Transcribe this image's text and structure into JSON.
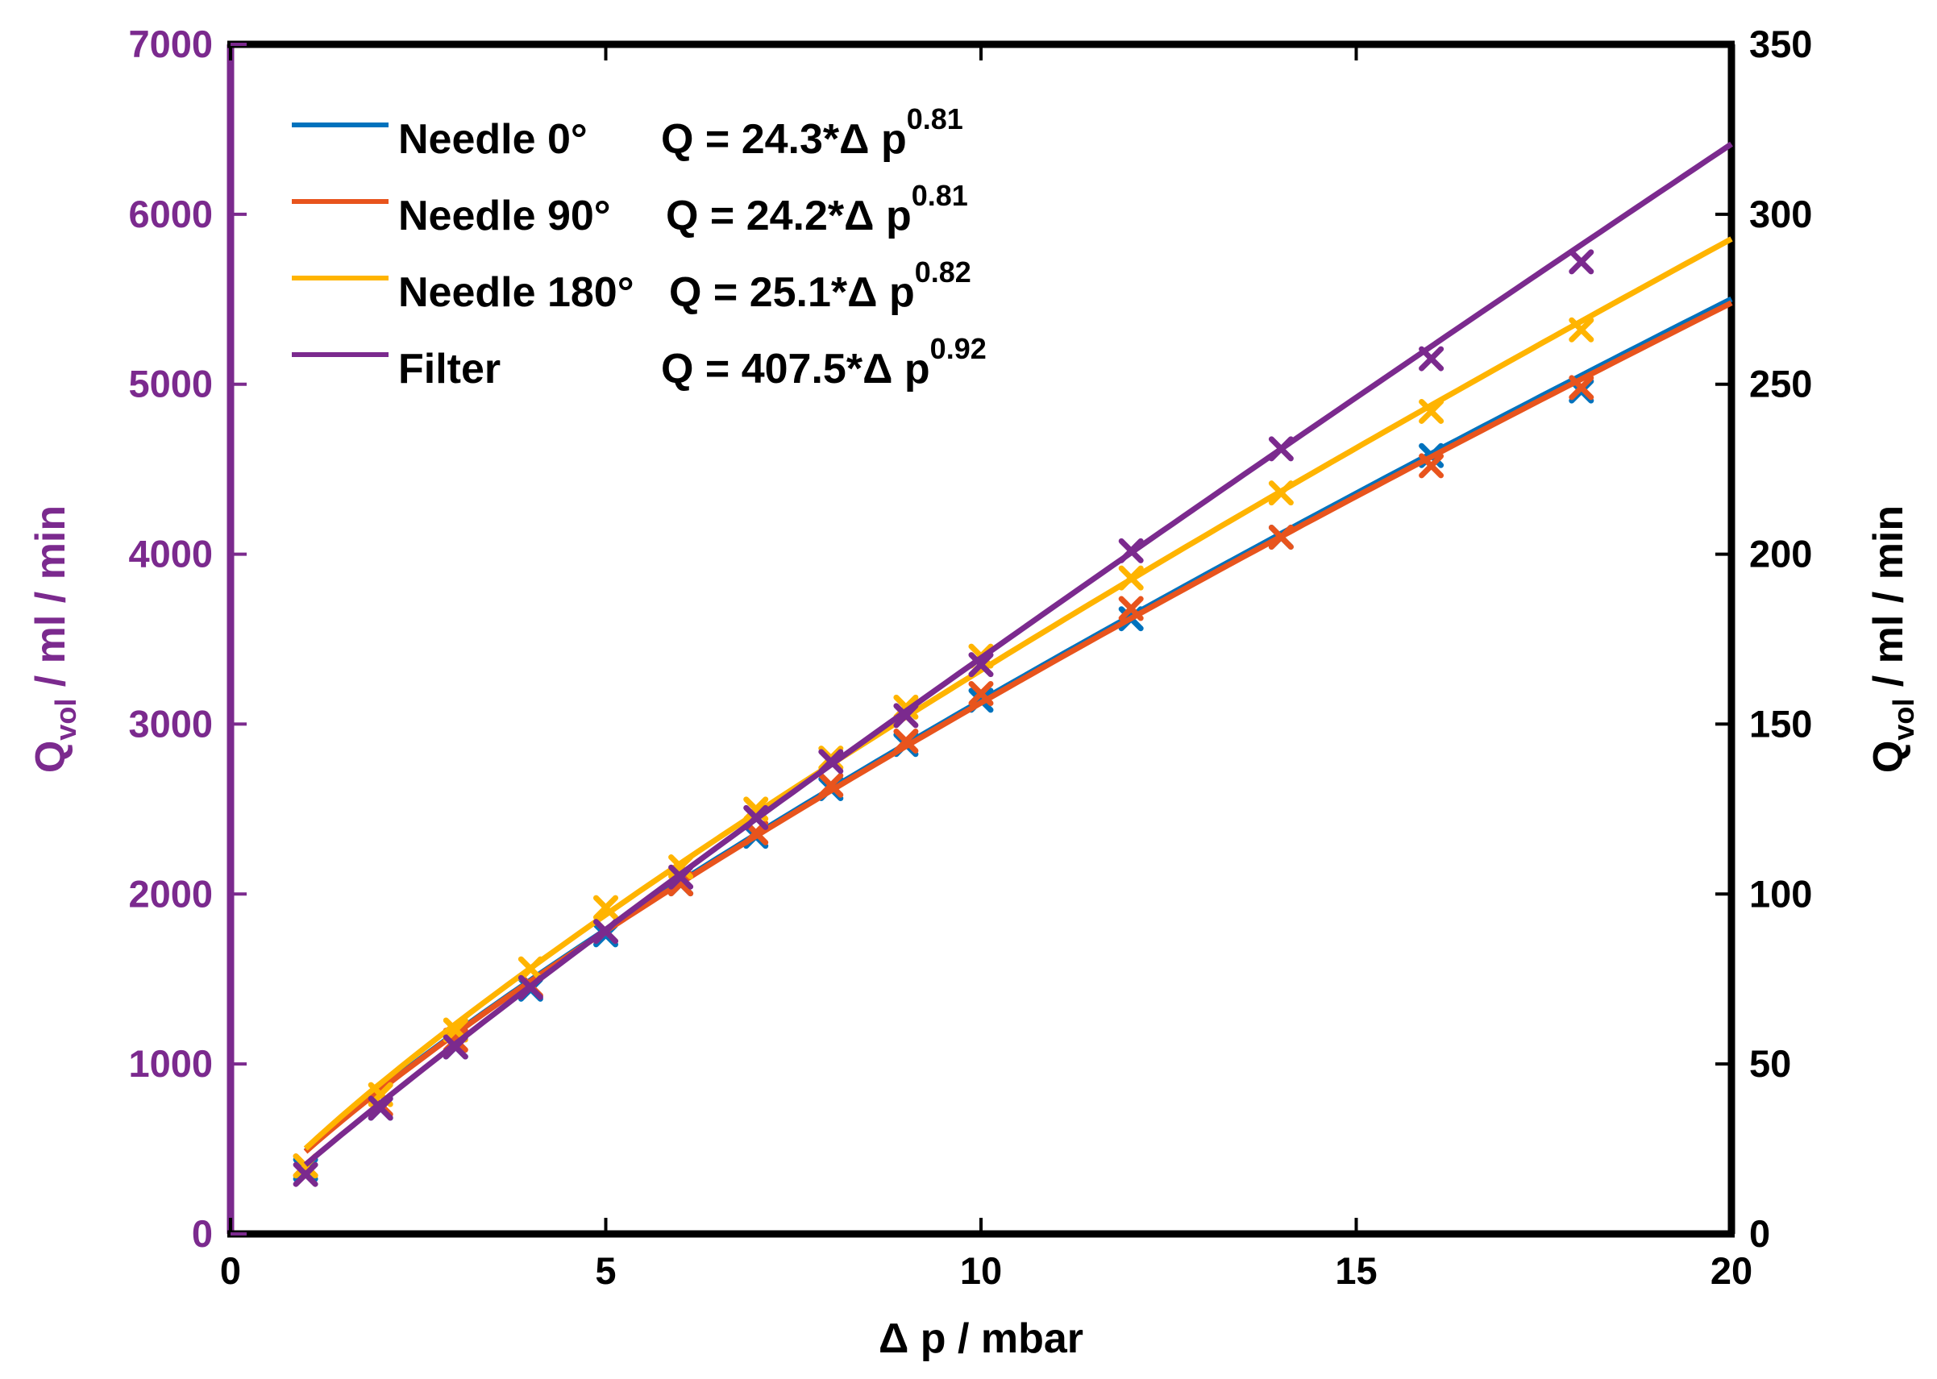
{
  "chart_data": {
    "type": "line",
    "xlabel": "Δ p / mbar",
    "ylabel_left": {
      "main": "Q",
      "sub": "vol",
      "rest": " / ml / min"
    },
    "ylabel_right": {
      "main": "Q",
      "sub": "vol",
      "rest": " / ml / min"
    },
    "xlim": [
      0,
      20
    ],
    "ylim_left": [
      0,
      7000
    ],
    "ylim_right": [
      0,
      350
    ],
    "xticks": [
      "0",
      "5",
      "10",
      "15",
      "20"
    ],
    "yticks_left": [
      "0",
      "1000",
      "2000",
      "3000",
      "4000",
      "5000",
      "6000",
      "7000"
    ],
    "yticks_right": [
      "0",
      "50",
      "100",
      "150",
      "200",
      "250",
      "300",
      "350"
    ],
    "grid": false,
    "legend_position": "top-left",
    "left_axis_color": "#7B2A8E",
    "right_axis_color": "#000000",
    "series": [
      {
        "name": "Needle 0°",
        "equation": {
          "prefix": "Q = 24.3*",
          "delta": "Δ",
          "var": " p",
          "exp": "0.81"
        },
        "color": "#0072BD",
        "axis": "right",
        "fit": {
          "a": 24.3,
          "b": 0.81
        },
        "x": [
          1,
          2,
          3,
          4,
          5,
          6,
          7,
          8,
          9,
          10,
          12,
          14,
          16,
          18
        ],
        "values": [
          19,
          37,
          55,
          72,
          88,
          103,
          117,
          131,
          144,
          157,
          181,
          205,
          229,
          248
        ]
      },
      {
        "name": "Needle 90°",
        "equation": {
          "prefix": "Q = 24.2*",
          "delta": "Δ",
          "var": " p",
          "exp": "0.81"
        },
        "color": "#E8541D",
        "axis": "right",
        "fit": {
          "a": 24.2,
          "b": 0.81
        },
        "x": [
          1,
          2,
          3,
          4,
          5,
          6,
          7,
          8,
          9,
          10,
          12,
          14,
          16,
          18
        ],
        "values": [
          20,
          38,
          57,
          73,
          89,
          103,
          118,
          132,
          145,
          159,
          184,
          205,
          226,
          249
        ]
      },
      {
        "name": "Needle 180°",
        "equation": {
          "prefix": "Q = 25.1*",
          "delta": "Δ",
          "var": " p",
          "exp": "0.82"
        },
        "color": "#FFB400",
        "axis": "right",
        "fit": {
          "a": 25.1,
          "b": 0.82
        },
        "x": [
          1,
          2,
          3,
          4,
          5,
          6,
          7,
          8,
          9,
          10,
          12,
          14,
          16,
          18
        ],
        "values": [
          20,
          41,
          60,
          78,
          96,
          108,
          125,
          140,
          155,
          170,
          193,
          218,
          242,
          266
        ]
      },
      {
        "name": "Filter",
        "equation": {
          "prefix": "Q = 407.5*",
          "delta": "Δ",
          "var": " p",
          "exp": "0.92"
        },
        "color": "#7B2A8E",
        "axis": "left",
        "fit": {
          "a": 407.5,
          "b": 0.92
        },
        "x": [
          1,
          2,
          3,
          4,
          5,
          6,
          7,
          8,
          9,
          10,
          12,
          14,
          16,
          18
        ],
        "values": [
          350,
          740,
          1100,
          1450,
          1780,
          2100,
          2450,
          2780,
          3050,
          3350,
          4020,
          4620,
          5150,
          5720
        ]
      }
    ]
  }
}
